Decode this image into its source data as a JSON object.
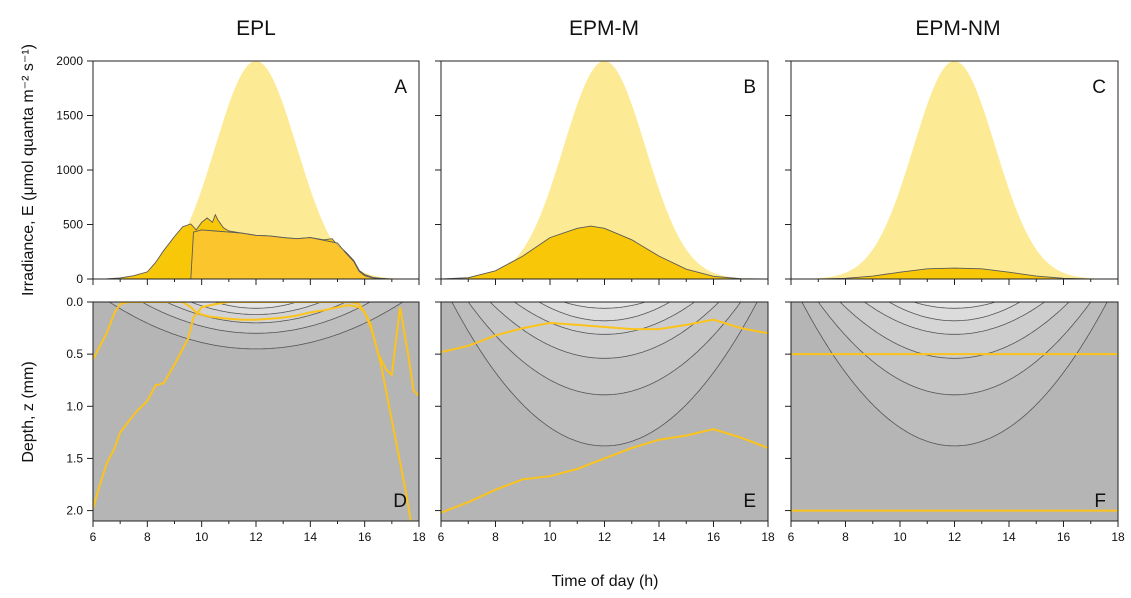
{
  "figure": {
    "column_titles": [
      "EPL",
      "EPM-M",
      "EPM-NM"
    ],
    "shared_xlabel": "Time of day (h)",
    "ylabel_top": "Irradiance, E (μmol quanta m⁻² s⁻¹)",
    "ylabel_bottom": "Depth, z (mm)"
  },
  "chart_data": [
    {
      "panel": "A",
      "type": "area",
      "column": "EPL",
      "xlim": [
        6,
        18
      ],
      "ylim": [
        0,
        2000
      ],
      "xticks": [
        6,
        8,
        10,
        12,
        14,
        16,
        18
      ],
      "yticks": [
        0,
        500,
        1000,
        1500,
        2000
      ],
      "ytick_labels": [
        "0",
        "500",
        "1000",
        "1500",
        "2000"
      ],
      "ylabel": "Irradiance, E (μmol quanta m⁻² s⁻¹)",
      "colors": {
        "incident": "#fdea94",
        "absorbed": "#f8c500",
        "absorbed_line": "#5a5a5a"
      },
      "series": [
        {
          "role": "incident",
          "x": [
            6,
            7,
            8,
            9,
            10,
            11,
            12,
            13,
            14,
            15,
            16,
            17,
            18
          ],
          "y": [
            1,
            11,
            111,
            532,
            1242,
            1882,
            2000,
            1882,
            1242,
            532,
            111,
            11,
            1
          ]
        },
        {
          "role": "absorbed",
          "x": [
            6,
            6.5,
            7,
            7.5,
            8,
            8.3,
            8.6,
            9,
            9.3,
            9.6,
            9.8,
            10,
            10.2,
            10.4,
            10.5,
            10.6,
            10.8,
            11,
            11.5,
            12,
            12.5,
            13,
            13.5,
            14,
            14.5,
            14.8,
            15,
            15.3,
            15.6,
            15.8,
            16,
            16.3,
            16.6,
            17,
            18
          ],
          "y": [
            0,
            2,
            10,
            30,
            65,
            150,
            260,
            390,
            480,
            505,
            450,
            520,
            560,
            520,
            590,
            540,
            470,
            440,
            420,
            400,
            395,
            380,
            370,
            380,
            360,
            370,
            310,
            250,
            170,
            80,
            40,
            15,
            5,
            0,
            0
          ]
        },
        {
          "role": "absorbed",
          "x": [
            6,
            7,
            8,
            9,
            9.6,
            9.7,
            10,
            10.5,
            11,
            11.5,
            12,
            12.5,
            13,
            13.5,
            14,
            14.5,
            15,
            15.3,
            15.6,
            15.8,
            16,
            16.3,
            17,
            18
          ],
          "y": [
            0,
            0,
            0,
            0,
            0,
            430,
            450,
            440,
            430,
            420,
            400,
            395,
            380,
            370,
            380,
            355,
            330,
            240,
            160,
            70,
            30,
            10,
            0,
            0
          ]
        }
      ]
    },
    {
      "panel": "B",
      "type": "area",
      "column": "EPM-M",
      "xlim": [
        6,
        18
      ],
      "ylim": [
        0,
        2000
      ],
      "xticks": [
        6,
        8,
        10,
        12,
        14,
        16,
        18
      ],
      "yticks": [
        0,
        500,
        1000,
        1500,
        2000
      ],
      "series": [
        {
          "role": "incident",
          "x": [
            6,
            7,
            8,
            9,
            10,
            11,
            12,
            13,
            14,
            15,
            16,
            17,
            18
          ],
          "y": [
            1,
            11,
            111,
            532,
            1242,
            1882,
            2000,
            1882,
            1242,
            532,
            111,
            11,
            1
          ]
        },
        {
          "role": "absorbed",
          "x": [
            6,
            7,
            8,
            9,
            10,
            11,
            11.5,
            12,
            13,
            14,
            15,
            16,
            17,
            18
          ],
          "y": [
            0,
            12,
            75,
            210,
            380,
            465,
            485,
            465,
            360,
            210,
            90,
            25,
            3,
            0
          ]
        }
      ]
    },
    {
      "panel": "C",
      "type": "area",
      "column": "EPM-NM",
      "xlim": [
        6,
        18
      ],
      "ylim": [
        0,
        2000
      ],
      "xticks": [
        6,
        8,
        10,
        12,
        14,
        16,
        18
      ],
      "yticks": [
        0,
        500,
        1000,
        1500,
        2000
      ],
      "series": [
        {
          "role": "incident",
          "x": [
            6,
            7,
            8,
            9,
            10,
            11,
            12,
            13,
            14,
            15,
            16,
            17,
            18
          ],
          "y": [
            1,
            11,
            111,
            532,
            1242,
            1882,
            2000,
            1882,
            1242,
            532,
            111,
            11,
            1
          ]
        },
        {
          "role": "absorbed",
          "x": [
            6,
            7,
            8,
            9,
            10,
            11,
            12,
            13,
            14,
            15,
            16,
            17,
            18
          ],
          "y": [
            0,
            1,
            6,
            27,
            62,
            94,
            100,
            94,
            62,
            27,
            6,
            1,
            0
          ]
        }
      ]
    },
    {
      "panel": "D",
      "type": "line",
      "column": "EPL",
      "xlim": [
        6,
        18
      ],
      "ylim": [
        2.1,
        0
      ],
      "xticks": [
        6,
        8,
        10,
        12,
        14,
        16,
        18
      ],
      "xtick_labels": [
        "6",
        "8",
        "10",
        "12",
        "14",
        "16",
        "18"
      ],
      "yticks": [
        0,
        0.5,
        1.0,
        1.5,
        2.0
      ],
      "ytick_labels": [
        "0.0",
        "0.5",
        "1.0",
        "1.5",
        "2.0"
      ],
      "xlabel": "Time of day (h)",
      "ylabel": "Depth, z (mm)",
      "contour_depth_peaks": [
        0.06,
        0.12,
        0.2,
        0.3,
        0.45
      ],
      "contour_half_width_h": [
        1.5,
        2.4,
        3.3,
        4.2,
        5.4
      ],
      "colors": {
        "background": "#b5b5b5",
        "contour_fill": [
          "#bebebe",
          "#c9c9c9",
          "#d3d3d3",
          "#dcdcdc",
          "#e5e5e5"
        ],
        "line": "#fbc31b"
      },
      "series": [
        {
          "x": [
            6,
            6.2,
            6.5,
            6.8,
            7,
            7.3,
            7.6,
            8,
            8.3,
            8.6,
            9,
            9.3,
            9.6,
            9.8,
            10,
            10.3,
            10.6,
            11,
            11.5,
            12,
            12.5,
            13,
            13.5,
            14,
            14.5,
            15,
            15.4,
            15.8,
            16,
            16.2,
            16.5,
            16.8,
            17,
            17.3,
            17.6,
            17.8,
            18
          ],
          "y": [
            0.55,
            0.45,
            0.3,
            0.1,
            0.02,
            0.0,
            0.0,
            0.0,
            0.0,
            0.0,
            0.0,
            0.0,
            0.05,
            0.1,
            0.12,
            0.14,
            0.15,
            0.16,
            0.17,
            0.17,
            0.16,
            0.15,
            0.13,
            0.1,
            0.08,
            0.05,
            0.03,
            0.05,
            0.1,
            0.2,
            0.5,
            0.65,
            0.7,
            0.05,
            0.5,
            0.85,
            0.9
          ]
        },
        {
          "x": [
            6,
            6.2,
            6.5,
            6.8,
            7,
            7.3,
            7.6,
            8,
            8.3,
            8.6,
            9,
            9.3,
            9.5,
            9.7,
            10,
            10.5,
            11,
            11.5,
            12,
            12.5,
            13,
            13.5,
            14,
            14.5,
            15,
            15.5,
            15.8,
            16,
            16.3,
            16.6,
            16.9,
            17.2,
            17.5,
            17.7
          ],
          "y": [
            1.98,
            1.8,
            1.55,
            1.4,
            1.25,
            1.15,
            1.05,
            0.95,
            0.8,
            0.78,
            0.6,
            0.45,
            0.35,
            0.15,
            0.05,
            0.02,
            0.0,
            0.0,
            0.0,
            0.0,
            0.0,
            0.0,
            0.0,
            0.0,
            0.0,
            0.0,
            0.02,
            0.1,
            0.3,
            0.6,
            1.0,
            1.4,
            1.8,
            2.1
          ]
        }
      ]
    },
    {
      "panel": "E",
      "type": "line",
      "column": "EPM-M",
      "xlim": [
        6,
        18
      ],
      "ylim": [
        2.1,
        0
      ],
      "xticks": [
        6,
        8,
        10,
        12,
        14,
        16,
        18
      ],
      "xtick_labels": [
        "6",
        "8",
        "10",
        "12",
        "14",
        "16",
        "18"
      ],
      "yticks": [
        0,
        0.5,
        1.0,
        1.5,
        2.0
      ],
      "contour_depth_peaks": [
        0.06,
        0.18,
        0.31,
        0.54,
        0.89,
        1.38
      ],
      "contour_half_width_h": [
        1.5,
        2.4,
        3.3,
        4.2,
        5.0,
        5.6
      ],
      "colors": {
        "background": "#b5b5b5",
        "contour_fill": [
          "#bdbdbd",
          "#c5c5c5",
          "#cdcdcd",
          "#d5d5d5",
          "#dcdcdc",
          "#e4e4e4"
        ],
        "line": "#fbc31b"
      },
      "series": [
        {
          "x": [
            6,
            7,
            8,
            9,
            10,
            11,
            12,
            13,
            14,
            15,
            16,
            17,
            18
          ],
          "y": [
            0.48,
            0.42,
            0.32,
            0.25,
            0.2,
            0.22,
            0.24,
            0.26,
            0.26,
            0.22,
            0.17,
            0.25,
            0.3
          ]
        },
        {
          "x": [
            6,
            7,
            8,
            9,
            10,
            11,
            12,
            13,
            14,
            15,
            16,
            17,
            18
          ],
          "y": [
            2.02,
            1.92,
            1.8,
            1.7,
            1.67,
            1.6,
            1.5,
            1.4,
            1.32,
            1.28,
            1.22,
            1.3,
            1.4
          ]
        }
      ]
    },
    {
      "panel": "F",
      "type": "line",
      "column": "EPM-NM",
      "xlim": [
        6,
        18
      ],
      "ylim": [
        2.1,
        0
      ],
      "xticks": [
        6,
        8,
        10,
        12,
        14,
        16,
        18
      ],
      "xtick_labels": [
        "6",
        "8",
        "10",
        "12",
        "14",
        "16",
        "18"
      ],
      "yticks": [
        0,
        0.5,
        1.0,
        1.5,
        2.0
      ],
      "contour_depth_peaks": [
        0.06,
        0.18,
        0.31,
        0.54,
        0.89,
        1.38
      ],
      "contour_half_width_h": [
        1.5,
        2.4,
        3.3,
        4.2,
        5.0,
        5.6
      ],
      "colors": {
        "background": "#b5b5b5",
        "contour_fill": [
          "#bdbdbd",
          "#c5c5c5",
          "#cdcdcd",
          "#d5d5d5",
          "#dcdcdc",
          "#e4e4e4"
        ],
        "line": "#fbc31b"
      },
      "series": [
        {
          "x": [
            6,
            18
          ],
          "y": [
            0.5,
            0.5
          ]
        },
        {
          "x": [
            6,
            18
          ],
          "y": [
            2.0,
            2.0
          ]
        }
      ]
    }
  ]
}
